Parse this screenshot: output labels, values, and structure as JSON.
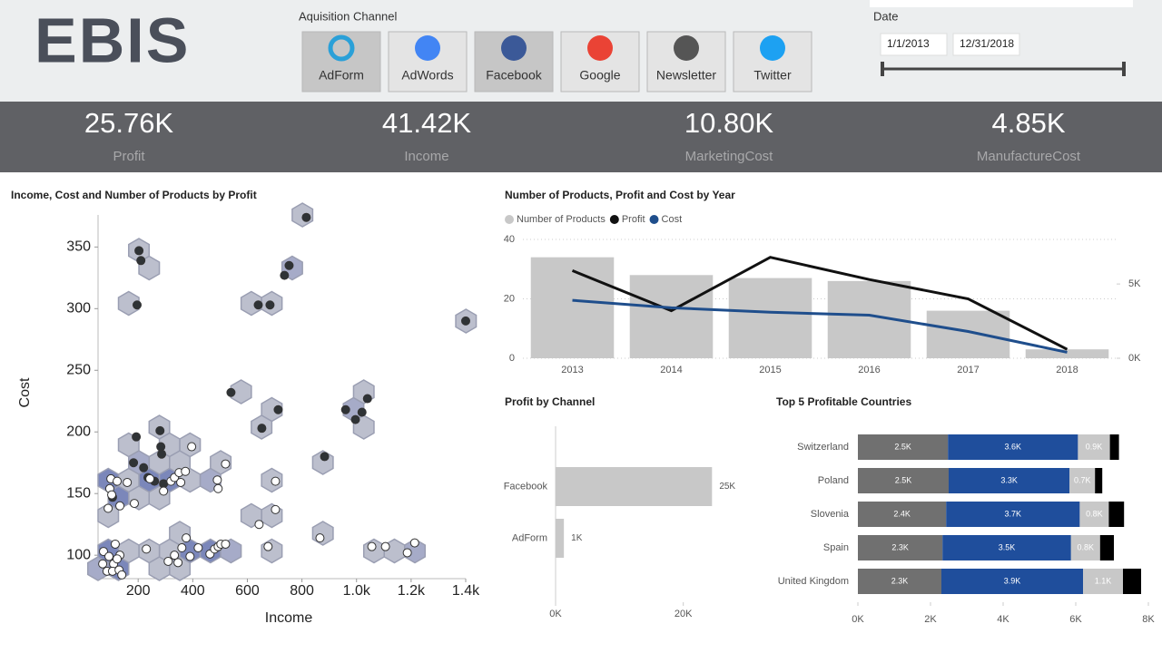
{
  "header": {
    "logo": "EBIS",
    "channel_title": "Aquisition Channel",
    "channels": [
      "AdForm",
      "AdWords",
      "Facebook",
      "Google",
      "Newsletter",
      "Twitter"
    ],
    "selected_channels": [
      true,
      false,
      true,
      false,
      false,
      false
    ],
    "date_title": "Date",
    "date_start": "1/1/2013",
    "date_end": "12/31/2018"
  },
  "kpis": [
    {
      "value": "25.76K",
      "label": "Profit"
    },
    {
      "value": "41.42K",
      "label": "Income"
    },
    {
      "value": "10.80K",
      "label": "MarketingCost"
    },
    {
      "value": "4.85K",
      "label": "ManufactureCost"
    }
  ],
  "chart_data": [
    {
      "type": "scatter",
      "title": "Income, Cost and Number of Products by Profit",
      "x_label": "Income",
      "y_label": "Cost",
      "xlim": [
        53,
        1400
      ],
      "ylim": [
        81,
        376
      ],
      "xticks": [
        200,
        400,
        600,
        800,
        {
          "value": 1000,
          "label": "1.0k"
        },
        {
          "value": 1200,
          "label": "1.2k"
        },
        {
          "value": 1400,
          "label": "1.4k"
        }
      ],
      "yticks": [
        100,
        150,
        200,
        250,
        300,
        350
      ],
      "hexbin": true,
      "series": [
        {
          "color": "#2f3336",
          "x": [
            816,
            203,
            210,
            196,
            753,
            736,
            640,
            683,
            1400,
            540,
            713,
            653,
            960,
            996,
            1040,
            1020,
            883,
            193,
            280,
            283,
            286,
            183,
            220,
            236,
            260,
            293,
            106
          ],
          "y": [
            374,
            347,
            339,
            303,
            335,
            327,
            303,
            303,
            290,
            232,
            218,
            203,
            218,
            210,
            227,
            216,
            180,
            196,
            201,
            188,
            182,
            175,
            171,
            163,
            160,
            158,
            147
          ]
        },
        {
          "color": "#ffffff",
          "x": [
            100,
            96,
            103,
            90,
            133,
            123,
            160,
            186,
            243,
            293,
            320,
            333,
            350,
            373,
            356,
            396,
            520,
            490,
            493,
            703,
            703,
            643,
            676,
            866,
            1056,
            1106,
            1213,
            1186,
            376,
            360,
            390,
            346,
            310,
            333,
            420,
            463,
            480,
            493,
            503,
            520,
            230,
            73,
            93,
            116,
            133,
            110,
            86,
            106,
            130,
            140,
            123,
            70
          ],
          "y": [
            162,
            154,
            149,
            138,
            140,
            160,
            159,
            142,
            162,
            152,
            160,
            163,
            167,
            168,
            159,
            188,
            174,
            161,
            154,
            160,
            137,
            125,
            107,
            114,
            107,
            107,
            110,
            102,
            114,
            106,
            99,
            94,
            95,
            100,
            106,
            101,
            105,
            107,
            109,
            109,
            105,
            103,
            99,
            109,
            100,
            93,
            87,
            87,
            88,
            84,
            97,
            93
          ]
        }
      ]
    },
    {
      "type": "combo",
      "title": "Number of Products, Profit and Cost by Year",
      "categories": [
        "2013",
        "2014",
        "2015",
        "2016",
        "2017",
        "2018"
      ],
      "ylim": [
        0,
        40
      ],
      "yticks": [
        0,
        20,
        40
      ],
      "grid": true,
      "y2lim": [
        0,
        8000
      ],
      "y2ticks": [
        {
          "value": 0,
          "label": "0K"
        },
        {
          "value": 5000,
          "label": "5K"
        }
      ],
      "series": [
        {
          "name": "Number of Products",
          "color": "#c8c8c8",
          "kind": "bar",
          "values": [
            34,
            28,
            27,
            26,
            16,
            3
          ]
        },
        {
          "name": "Profit",
          "color": "#111111",
          "kind": "line",
          "axis": "y2",
          "values": [
            5900,
            3200,
            6800,
            5300,
            4000,
            600
          ]
        },
        {
          "name": "Cost",
          "color": "#1f4e8c",
          "kind": "line",
          "axis": "y2",
          "values": [
            3900,
            3400,
            3100,
            2900,
            1800,
            400
          ]
        }
      ]
    },
    {
      "type": "hbar",
      "title": "Profit by Channel",
      "categories": [
        "Facebook",
        "AdForm"
      ],
      "values": [
        24500,
        1300
      ],
      "value_labels": [
        "25K",
        "1K"
      ],
      "color": "#c8c8c8",
      "xlim": [
        0,
        30000
      ],
      "xticks": [
        {
          "value": 0,
          "label": "0K"
        },
        {
          "value": 20000,
          "label": "20K"
        }
      ]
    },
    {
      "type": "stacked_hbar",
      "title": "Top 5 Profitable Countries",
      "categories": [
        "Switzerland",
        "Poland",
        "Slovenia",
        "Spain",
        "United Kingdom"
      ],
      "xlim": [
        0,
        8000
      ],
      "xticks": [
        {
          "value": 0,
          "label": "0K"
        },
        {
          "value": 2000,
          "label": "2K"
        },
        {
          "value": 4000,
          "label": "4K"
        },
        {
          "value": 6000,
          "label": "6K"
        },
        {
          "value": 8000,
          "label": "8K"
        }
      ],
      "series": [
        {
          "color": "#707070",
          "values": [
            2480,
            2500,
            2430,
            2330,
            2300
          ],
          "value_labels": [
            "2.5K",
            "2.5K",
            "2.4K",
            "2.3K",
            "2.3K"
          ]
        },
        {
          "color": "#1f4e9c",
          "values": [
            3580,
            3330,
            3680,
            3540,
            3900
          ],
          "value_labels": [
            "3.6K",
            "3.3K",
            "3.7K",
            "3.5K",
            "3.9K"
          ]
        },
        {
          "color": "#c8c8c8",
          "values": [
            880,
            700,
            800,
            800,
            1100
          ],
          "value_labels": [
            "0.9K",
            "0.7K",
            "0.8K",
            "0.8K",
            "1.1K"
          ]
        },
        {
          "color": "#000000",
          "values": [
            250,
            200,
            420,
            380,
            500
          ]
        }
      ]
    }
  ]
}
